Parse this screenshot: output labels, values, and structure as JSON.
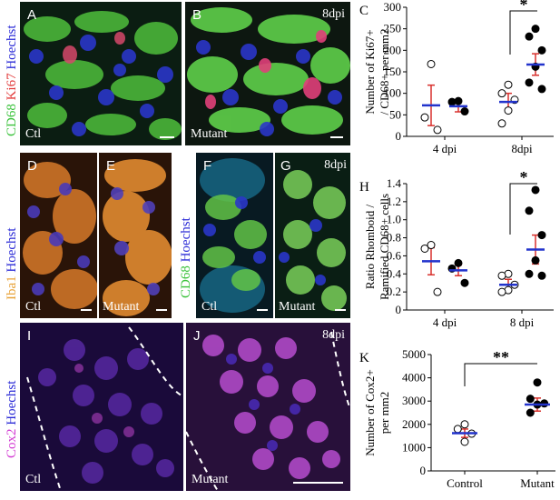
{
  "row1": {
    "stain": {
      "part1": "CD68",
      "part2": "Ki67",
      "part3": "Hoechst",
      "c1": "#39c23a",
      "c2": "#e23a3a",
      "c3": "#2b2bd6"
    },
    "panelA": {
      "label": "A",
      "condition": "Ctl"
    },
    "panelB": {
      "label": "B",
      "condition": "Mutant",
      "time": "8dpi"
    }
  },
  "row2": {
    "stain_iba": {
      "part1": "Iba1",
      "part2": "Hoechst",
      "c1": "#e8a33a",
      "c2": "#2b2bd6"
    },
    "stain_cd": {
      "part1": "CD68",
      "part2": "Hoechst",
      "c1": "#39c23a",
      "c2": "#2b2bd6"
    },
    "panelD": {
      "label": "D",
      "condition": "Ctl"
    },
    "panelE": {
      "label": "E",
      "condition": "Mutant"
    },
    "panelF": {
      "label": "F",
      "condition": "Ctl"
    },
    "panelG": {
      "label": "G",
      "condition": "Mutant",
      "time": "8dpi"
    }
  },
  "row3": {
    "stain": {
      "part1": "Cox2",
      "part2": "Hoechst",
      "c1": "#d23ad2",
      "c2": "#2b2bd6"
    },
    "panelI": {
      "label": "I",
      "condition": "Ctl"
    },
    "panelJ": {
      "label": "J",
      "condition": "Mutant",
      "time": "8dpi"
    }
  },
  "chart_data": [
    {
      "panel": "C",
      "type": "scatter",
      "ylabel_line1": "Number of  Ki67+",
      "ylabel_line2": "/ CD68+ per mm2",
      "categories": [
        "4 dpi",
        "8dpi"
      ],
      "yticks": [
        "0",
        "50",
        "100",
        "150",
        "200",
        "250",
        "300"
      ],
      "ylim": [
        0,
        300
      ],
      "significance": "*",
      "groups": [
        {
          "category": "4 dpi",
          "genotype": "control",
          "mean": 72,
          "err": 47,
          "points": [
            168,
            15,
            44
          ]
        },
        {
          "category": "4 dpi",
          "genotype": "mutant",
          "mean": 70,
          "err": 13,
          "points": [
            80,
            82,
            58
          ]
        },
        {
          "category": "8dpi",
          "genotype": "control",
          "mean": 80,
          "err": 20,
          "points": [
            120,
            100,
            85,
            60,
            30
          ]
        },
        {
          "category": "8dpi",
          "genotype": "mutant",
          "mean": 167,
          "err": 25,
          "points": [
            250,
            232,
            200,
            162,
            125,
            110
          ]
        }
      ]
    },
    {
      "panel": "H",
      "type": "scatter",
      "ylabel_line1": "Ratio Rhomboid /",
      "ylabel_line2": "Ramified CD68+ cells",
      "categories": [
        "4 dpi",
        "8 dpi"
      ],
      "yticks": [
        "0",
        "0.2",
        "0.4",
        "0.6",
        "0.8",
        "1.0",
        "1.2",
        "1.4"
      ],
      "ylim": [
        0,
        1.4
      ],
      "significance": "*",
      "groups": [
        {
          "category": "4 dpi",
          "genotype": "control",
          "mean": 0.54,
          "err": 0.15,
          "points": [
            0.72,
            0.68,
            0.2
          ]
        },
        {
          "category": "4 dpi",
          "genotype": "mutant",
          "mean": 0.44,
          "err": 0.06,
          "points": [
            0.52,
            0.46,
            0.3
          ]
        },
        {
          "category": "8 dpi",
          "genotype": "control",
          "mean": 0.28,
          "err": 0.06,
          "points": [
            0.4,
            0.38,
            0.28,
            0.22,
            0.2
          ]
        },
        {
          "category": "8 dpi",
          "genotype": "mutant",
          "mean": 0.67,
          "err": 0.16,
          "points": [
            1.33,
            1.1,
            0.83,
            0.55,
            0.4,
            0.38
          ]
        }
      ]
    },
    {
      "panel": "K",
      "type": "scatter",
      "ylabel_line1": "Number of Cox2+",
      "ylabel_line2": "per mm2",
      "categories": [
        "Control",
        "Mutant"
      ],
      "yticks": [
        "0",
        "1000",
        "2000",
        "3000",
        "4000",
        "5000"
      ],
      "ylim": [
        0,
        5000
      ],
      "significance": "**",
      "groups": [
        {
          "category": "Control",
          "genotype": "control",
          "mean": 1620,
          "err": 180,
          "points": [
            2000,
            1800,
            1600,
            1250
          ]
        },
        {
          "category": "Mutant",
          "genotype": "mutant",
          "mean": 2850,
          "err": 280,
          "points": [
            3800,
            3100,
            2900,
            2850,
            2500
          ]
        }
      ]
    }
  ]
}
